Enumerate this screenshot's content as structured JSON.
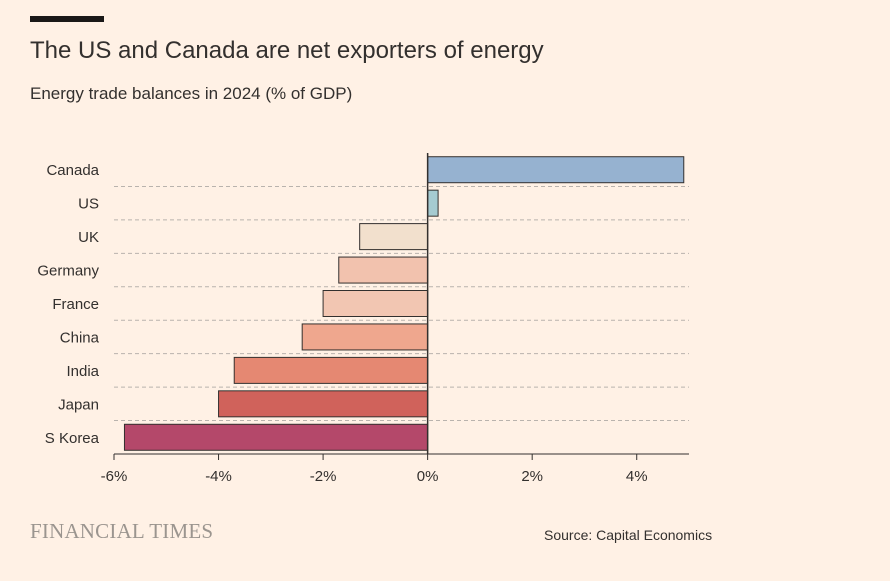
{
  "header": {
    "title": "The US and Canada are net exporters of energy",
    "subtitle": "Energy trade balances in 2024 (% of GDP)"
  },
  "footer": {
    "logo_text": "FINANCIAL TIMES",
    "source": "Source: Capital Economics"
  },
  "colors": {
    "background": "#fff1e5",
    "axis": "#33302e",
    "gridline": "#b9b3ad",
    "bar_stroke": "#33302e"
  },
  "chart_data": {
    "type": "bar",
    "orientation": "horizontal",
    "title": "The US and Canada are net exporters of energy",
    "subtitle": "Energy trade balances in 2024 (% of GDP)",
    "xlabel": "",
    "ylabel": "",
    "categories": [
      "Canada",
      "US",
      "UK",
      "Germany",
      "France",
      "China",
      "India",
      "Japan",
      "S Korea"
    ],
    "values": [
      4.9,
      0.2,
      -1.3,
      -1.7,
      -2.0,
      -2.4,
      -3.7,
      -4.0,
      -5.8
    ],
    "bar_colors": [
      "#96b2d0",
      "#a5cbd1",
      "#f2e0cd",
      "#f2c2ae",
      "#f2c6b2",
      "#efa78e",
      "#e58872",
      "#d0625b",
      "#b4486a"
    ],
    "xlim": [
      -6,
      5
    ],
    "ticks": [
      -6,
      -4,
      -2,
      0,
      2,
      4
    ],
    "tick_labels": [
      "-6%",
      "-4%",
      "-2%",
      "0%",
      "2%",
      "4%"
    ],
    "grid": true
  }
}
